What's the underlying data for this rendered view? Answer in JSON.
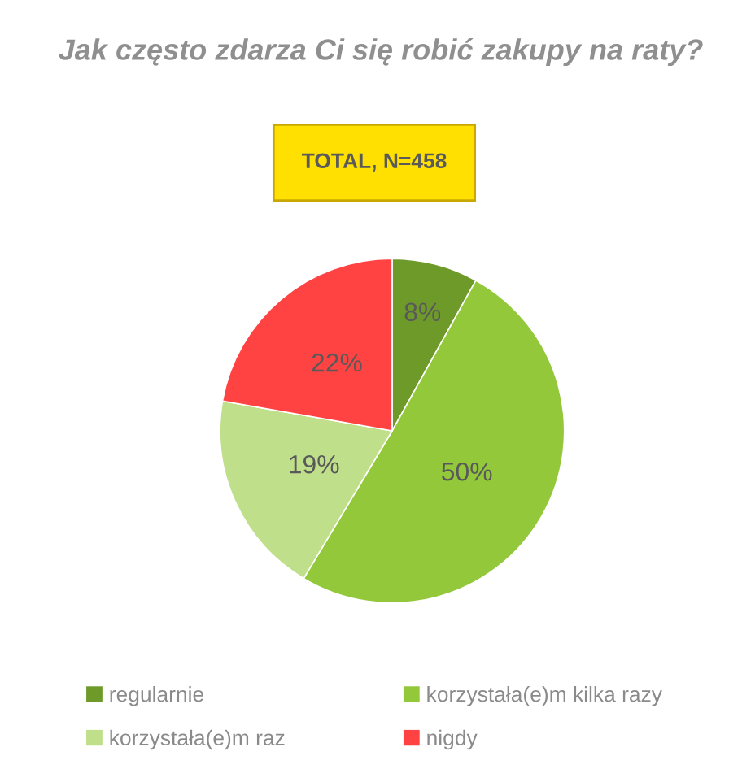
{
  "chart_data": {
    "type": "pie",
    "title": "Jak często zdarza Ci się robić zakupy na raty?",
    "subtitle": "TOTAL, N=458",
    "categories": [
      "regularnie",
      "korzystała(e)m kilka razy",
      "korzystała(e)m raz",
      "nigdy"
    ],
    "values": [
      8,
      50,
      19,
      22
    ],
    "colors": [
      "#6e9a2a",
      "#92c83a",
      "#c0df8a",
      "#ff4343"
    ],
    "value_labels": [
      "8%",
      "50%",
      "19%",
      "22%"
    ],
    "legend": "bottom"
  }
}
